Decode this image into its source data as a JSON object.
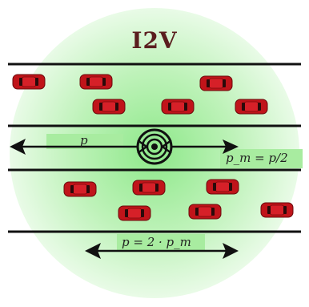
{
  "title": "I2V",
  "labels": {
    "p_top": "p",
    "pm_eq": "p_m = p/2",
    "p_bottom": "p = 2 · p_m"
  },
  "colors": {
    "glow": "#b8f0b0",
    "band": "#a8eca0",
    "road_line": "#111111",
    "car_body": "#c0141a",
    "car_glass": "#2a0a0a",
    "title": "#5a1e1e"
  },
  "icons": {
    "center": "wireless-signal-icon",
    "car": "car-icon"
  }
}
